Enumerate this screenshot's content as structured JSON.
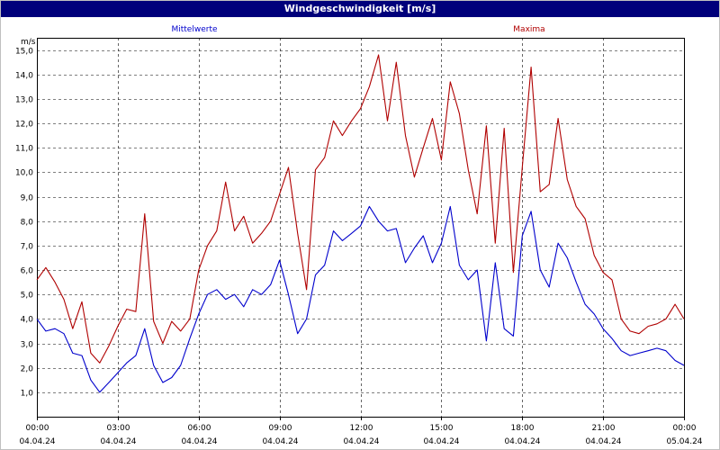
{
  "window": {
    "title": "Windgeschwindigkeit [m/s]"
  },
  "chart_data": {
    "type": "line",
    "title": "Windgeschwindigkeit [m/s]",
    "ylabel": "m/s",
    "xlabel": "",
    "ylim": [
      0,
      15.5
    ],
    "xlim": [
      0,
      24
    ],
    "yticks": [
      "1,0",
      "2,0",
      "3,0",
      "4,0",
      "5,0",
      "6,0",
      "7,0",
      "8,0",
      "9,0",
      "10,0",
      "11,0",
      "12,0",
      "13,0",
      "14,0",
      "15,0"
    ],
    "xticks": [
      {
        "time": "00:00",
        "date": "04.04.24"
      },
      {
        "time": "03:00",
        "date": "04.04.24"
      },
      {
        "time": "06:00",
        "date": "04.04.24"
      },
      {
        "time": "09:00",
        "date": "04.04.24"
      },
      {
        "time": "12:00",
        "date": "04.04.24"
      },
      {
        "time": "15:00",
        "date": "04.04.24"
      },
      {
        "time": "18:00",
        "date": "04.04.24"
      },
      {
        "time": "21:00",
        "date": "04.04.24"
      },
      {
        "time": "00:00",
        "date": "05.04.24"
      }
    ],
    "grid": true,
    "grid_style": "dashed",
    "x_unit": "hours since 04.04.24 00:00",
    "series": [
      {
        "name": "Mittelwerte",
        "color": "#0000cc",
        "x": [
          0,
          0.33,
          0.67,
          1,
          1.33,
          1.67,
          2,
          2.33,
          2.67,
          3,
          3.33,
          3.67,
          4,
          4.33,
          4.67,
          5,
          5.33,
          5.67,
          6,
          6.33,
          6.67,
          7,
          7.33,
          7.67,
          8,
          8.33,
          8.67,
          9,
          9.33,
          9.67,
          10,
          10.33,
          10.67,
          11,
          11.33,
          11.67,
          12,
          12.33,
          12.67,
          13,
          13.33,
          13.67,
          14,
          14.33,
          14.67,
          15,
          15.33,
          15.67,
          16,
          16.33,
          16.67,
          17,
          17.33,
          17.67,
          18,
          18.33,
          18.67,
          19,
          19.33,
          19.67,
          20,
          20.33,
          20.67,
          21,
          21.33,
          21.67,
          22,
          22.33,
          22.67,
          23,
          23.33,
          23.67,
          24
        ],
        "values": [
          4.0,
          3.5,
          3.6,
          3.4,
          2.6,
          2.5,
          1.5,
          1.0,
          1.4,
          1.8,
          2.2,
          2.5,
          3.6,
          2.1,
          1.4,
          1.6,
          2.1,
          3.2,
          4.2,
          5.0,
          5.2,
          4.8,
          5.0,
          4.5,
          5.2,
          5.0,
          5.4,
          6.4,
          5.0,
          3.4,
          4.0,
          5.8,
          6.2,
          7.6,
          7.2,
          7.5,
          7.8,
          8.6,
          8.0,
          7.6,
          7.7,
          6.3,
          6.9,
          7.4,
          6.3,
          7.1,
          8.6,
          6.2,
          5.6,
          6.0,
          3.1,
          6.3,
          3.6,
          3.3,
          7.4,
          8.4,
          6.0,
          5.3,
          7.1,
          6.5,
          5.5,
          4.6,
          4.2,
          3.6,
          3.2,
          2.7,
          2.5,
          2.6,
          2.7,
          2.8,
          2.7,
          2.3,
          2.1
        ]
      },
      {
        "name": "Maxima",
        "color": "#b00000",
        "x": [
          0,
          0.33,
          0.67,
          1,
          1.33,
          1.67,
          2,
          2.33,
          2.67,
          3,
          3.33,
          3.67,
          4,
          4.33,
          4.67,
          5,
          5.33,
          5.67,
          6,
          6.33,
          6.67,
          7,
          7.33,
          7.67,
          8,
          8.33,
          8.67,
          9,
          9.33,
          9.67,
          10,
          10.33,
          10.67,
          11,
          11.33,
          11.67,
          12,
          12.33,
          12.67,
          13,
          13.33,
          13.67,
          14,
          14.33,
          14.67,
          15,
          15.33,
          15.67,
          16,
          16.33,
          16.67,
          17,
          17.33,
          17.67,
          18,
          18.33,
          18.67,
          19,
          19.33,
          19.67,
          20,
          20.33,
          20.67,
          21,
          21.33,
          21.67,
          22,
          22.33,
          22.67,
          23,
          23.33,
          23.67,
          24
        ],
        "values": [
          5.6,
          6.1,
          5.5,
          4.8,
          3.6,
          4.7,
          2.6,
          2.2,
          2.9,
          3.7,
          4.4,
          4.3,
          8.3,
          3.9,
          3.0,
          3.9,
          3.5,
          4.0,
          6.0,
          7.0,
          7.6,
          9.6,
          7.6,
          8.2,
          7.1,
          7.5,
          8.0,
          9.1,
          10.2,
          7.5,
          5.2,
          10.1,
          10.6,
          12.1,
          11.5,
          12.1,
          12.6,
          13.5,
          14.8,
          12.1,
          14.5,
          11.5,
          9.8,
          11.0,
          12.2,
          10.5,
          13.7,
          12.4,
          10.1,
          8.3,
          11.9,
          7.1,
          11.8,
          5.9,
          10.2,
          14.3,
          9.2,
          9.5,
          12.2,
          9.7,
          8.6,
          8.1,
          6.6,
          5.9,
          5.6,
          4.0,
          3.5,
          3.4,
          3.7,
          3.8,
          4.0,
          4.6,
          4.0
        ]
      }
    ]
  }
}
